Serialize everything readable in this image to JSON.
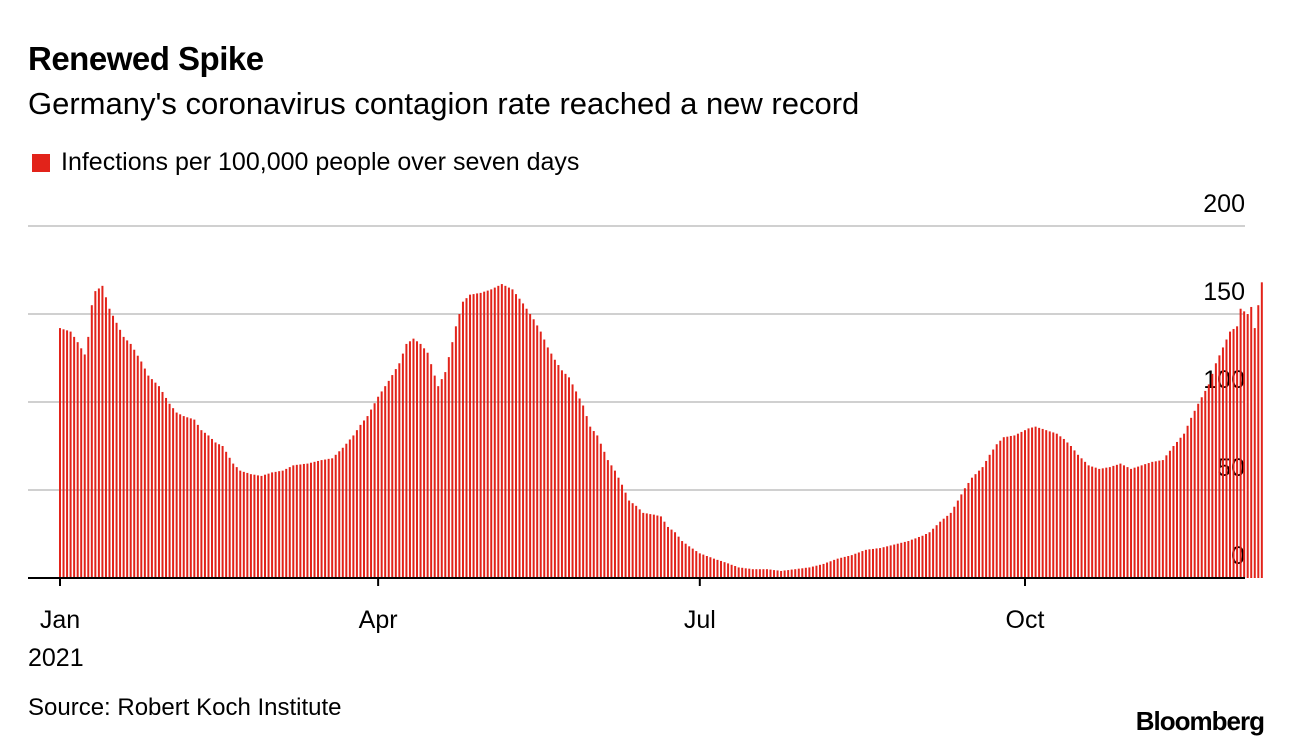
{
  "header": {
    "title": "Renewed Spike",
    "subtitle": "Germany's coronavirus contagion rate reached a new record"
  },
  "footer": {
    "source": "Source: Robert Koch Institute",
    "brand": "Bloomberg"
  },
  "colors": {
    "bar": "#e2231a",
    "grid": "#d0d0d0",
    "axis": "#000000"
  },
  "chart_data": {
    "type": "bar",
    "title": "Renewed Spike",
    "subtitle": "Germany's coronavirus contagion rate reached a new record",
    "legend": [
      "Infections per 100,000 people over seven days"
    ],
    "legend_position": "top-left",
    "y_axis": {
      "ticks": [
        0,
        50,
        100,
        150,
        200
      ],
      "position": "right",
      "grid": true
    },
    "x_axis": {
      "ticks": [
        {
          "day": 0,
          "label": "Jan"
        },
        {
          "day": 90,
          "label": "Apr"
        },
        {
          "day": 181,
          "label": "Jul"
        },
        {
          "day": 273,
          "label": "Oct"
        }
      ],
      "year_label": "2021"
    },
    "ylim": [
      0,
      200
    ],
    "x_start": "2021-01-01",
    "x_step_days": 1,
    "keyframes": [
      [
        0,
        142
      ],
      [
        3,
        140
      ],
      [
        5,
        134
      ],
      [
        7,
        127
      ],
      [
        8,
        137
      ],
      [
        9,
        155
      ],
      [
        10,
        163
      ],
      [
        12,
        166
      ],
      [
        14,
        153
      ],
      [
        16,
        145
      ],
      [
        18,
        137
      ],
      [
        20,
        133
      ],
      [
        23,
        123
      ],
      [
        25,
        115
      ],
      [
        28,
        109
      ],
      [
        31,
        99
      ],
      [
        33,
        94
      ],
      [
        35,
        92
      ],
      [
        38,
        90
      ],
      [
        40,
        84
      ],
      [
        42,
        81
      ],
      [
        44,
        77
      ],
      [
        46,
        75
      ],
      [
        49,
        65
      ],
      [
        51,
        61
      ],
      [
        54,
        59
      ],
      [
        57,
        58
      ],
      [
        60,
        60
      ],
      [
        63,
        61
      ],
      [
        66,
        64
      ],
      [
        70,
        65
      ],
      [
        74,
        67
      ],
      [
        77,
        68
      ],
      [
        80,
        74
      ],
      [
        83,
        81
      ],
      [
        85,
        87
      ],
      [
        87,
        92
      ],
      [
        90,
        103
      ],
      [
        93,
        112
      ],
      [
        96,
        122
      ],
      [
        98,
        133
      ],
      [
        100,
        136
      ],
      [
        102,
        133
      ],
      [
        104,
        128
      ],
      [
        106,
        115
      ],
      [
        107,
        109
      ],
      [
        109,
        117
      ],
      [
        111,
        134
      ],
      [
        112,
        143
      ],
      [
        114,
        157
      ],
      [
        116,
        161
      ],
      [
        119,
        162
      ],
      [
        122,
        164
      ],
      [
        125,
        167
      ],
      [
        128,
        164
      ],
      [
        131,
        156
      ],
      [
        134,
        147
      ],
      [
        136,
        140
      ],
      [
        138,
        131
      ],
      [
        140,
        124
      ],
      [
        142,
        118
      ],
      [
        144,
        114
      ],
      [
        146,
        106
      ],
      [
        148,
        98
      ],
      [
        150,
        86
      ],
      [
        152,
        81
      ],
      [
        155,
        67
      ],
      [
        157,
        61
      ],
      [
        159,
        53
      ],
      [
        161,
        44
      ],
      [
        163,
        41
      ],
      [
        165,
        37
      ],
      [
        168,
        36
      ],
      [
        170,
        35
      ],
      [
        172,
        29
      ],
      [
        174,
        26
      ],
      [
        176,
        21
      ],
      [
        178,
        18
      ],
      [
        181,
        14
      ],
      [
        185,
        11
      ],
      [
        188,
        9
      ],
      [
        192,
        6
      ],
      [
        196,
        5
      ],
      [
        200,
        5
      ],
      [
        204,
        4
      ],
      [
        208,
        5
      ],
      [
        212,
        6
      ],
      [
        216,
        8
      ],
      [
        220,
        11
      ],
      [
        224,
        13
      ],
      [
        228,
        16
      ],
      [
        232,
        17
      ],
      [
        236,
        19
      ],
      [
        240,
        21
      ],
      [
        244,
        24
      ],
      [
        246,
        26
      ],
      [
        249,
        32
      ],
      [
        252,
        37
      ],
      [
        254,
        44
      ],
      [
        256,
        51
      ],
      [
        258,
        57
      ],
      [
        261,
        63
      ],
      [
        263,
        70
      ],
      [
        265,
        76
      ],
      [
        267,
        80
      ],
      [
        270,
        81
      ],
      [
        272,
        83
      ],
      [
        274,
        85
      ],
      [
        276,
        86
      ],
      [
        279,
        84
      ],
      [
        282,
        82
      ],
      [
        284,
        79
      ],
      [
        286,
        75
      ],
      [
        288,
        70
      ],
      [
        291,
        64
      ],
      [
        294,
        62
      ],
      [
        297,
        63
      ],
      [
        300,
        65
      ],
      [
        303,
        62
      ],
      [
        306,
        64
      ],
      [
        309,
        66
      ],
      [
        312,
        67
      ],
      [
        315,
        75
      ],
      [
        318,
        82
      ],
      [
        320,
        91
      ],
      [
        322,
        99
      ],
      [
        325,
        110
      ],
      [
        327,
        122
      ],
      [
        329,
        131
      ],
      [
        331,
        140
      ],
      [
        333,
        143
      ],
      [
        334,
        153
      ],
      [
        336,
        150
      ],
      [
        337,
        154
      ],
      [
        338,
        142
      ],
      [
        339,
        155
      ],
      [
        340,
        168
      ]
    ]
  }
}
